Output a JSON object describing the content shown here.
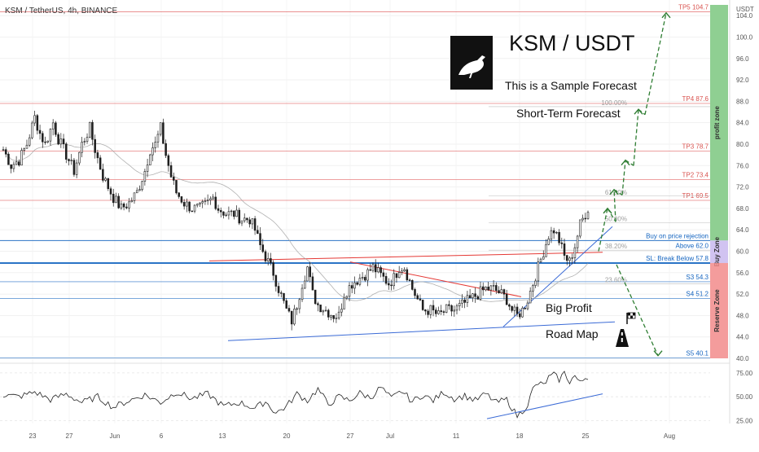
{
  "header": {
    "symbol": "KSM / TetherUS, 4h, BINANCE"
  },
  "overlay": {
    "title": "KSM / USDT",
    "line1": "This is a Sample Forecast",
    "line2": "Short-Term Forecast",
    "road1": "Big Profit",
    "road2": "Road Map"
  },
  "colors": {
    "up": "#1e1e1e",
    "down": "#1e1e1e",
    "tp": "#e57373",
    "blue": "#1565c0",
    "green_zone": "#7bc77f",
    "buy_zone": "#c9b8ef",
    "red_zone": "#f28b8b",
    "arrow": "#2e7d32",
    "trend_red": "#e53935",
    "trend_blue": "#3b6bd6"
  },
  "chart_data": [
    {
      "type": "candlestick",
      "title": "KSM / TetherUS, 4h, BINANCE",
      "y_unit": "USDT",
      "ylim": [
        40.0,
        106.0
      ],
      "x_ticks": [
        "23",
        "27",
        "Jun",
        "6",
        "13",
        "20",
        "27",
        "Jul",
        "11",
        "18",
        "25",
        "Aug"
      ],
      "y_ticks": [
        40.0,
        44.0,
        48.0,
        52.0,
        56.0,
        60.0,
        64.0,
        68.0,
        72.0,
        76.0,
        80.0,
        84.0,
        88.0,
        92.0,
        96.0,
        100.0,
        104.0
      ],
      "close_path": [
        [
          0,
          79
        ],
        [
          3,
          76
        ],
        [
          6,
          77
        ],
        [
          9,
          80
        ],
        [
          12,
          85
        ],
        [
          14,
          82
        ],
        [
          16,
          80
        ],
        [
          19,
          84
        ],
        [
          21,
          81
        ],
        [
          24,
          78
        ],
        [
          27,
          75
        ],
        [
          30,
          80
        ],
        [
          33,
          83
        ],
        [
          35,
          79
        ],
        [
          38,
          74
        ],
        [
          40,
          72
        ],
        [
          42,
          70
        ],
        [
          45,
          68
        ],
        [
          48,
          69
        ],
        [
          51,
          71
        ],
        [
          54,
          75
        ],
        [
          56,
          79
        ],
        [
          58,
          80
        ],
        [
          60,
          83
        ],
        [
          62,
          78
        ],
        [
          64,
          74
        ],
        [
          66,
          71
        ],
        [
          69,
          69
        ],
        [
          72,
          68
        ],
        [
          75,
          68
        ],
        [
          78,
          69
        ],
        [
          80,
          70
        ],
        [
          82,
          68
        ],
        [
          85,
          67
        ],
        [
          88,
          67
        ],
        [
          91,
          66
        ],
        [
          94,
          66
        ],
        [
          96,
          64
        ],
        [
          98,
          61
        ],
        [
          100,
          59
        ],
        [
          103,
          56
        ],
        [
          105,
          53
        ],
        [
          108,
          49
        ],
        [
          110,
          47
        ],
        [
          112,
          50
        ],
        [
          114,
          54
        ],
        [
          116,
          57
        ],
        [
          118,
          52
        ],
        [
          120,
          50
        ],
        [
          123,
          49
        ],
        [
          126,
          48
        ],
        [
          128,
          48
        ],
        [
          130,
          52
        ],
        [
          133,
          54
        ],
        [
          136,
          55
        ],
        [
          139,
          56
        ],
        [
          141,
          57
        ],
        [
          143,
          56
        ],
        [
          145,
          55
        ],
        [
          147,
          54
        ],
        [
          149,
          55
        ],
        [
          151,
          57
        ],
        [
          153,
          57
        ],
        [
          156,
          53
        ],
        [
          158,
          51
        ],
        [
          160,
          49
        ],
        [
          163,
          49
        ],
        [
          166,
          48
        ],
        [
          169,
          49
        ],
        [
          172,
          49
        ],
        [
          175,
          50
        ],
        [
          178,
          51
        ],
        [
          181,
          52
        ],
        [
          184,
          53
        ],
        [
          187,
          53
        ],
        [
          190,
          52
        ],
        [
          192,
          51
        ],
        [
          194,
          49
        ],
        [
          196,
          48
        ],
        [
          198,
          49
        ],
        [
          200,
          51
        ],
        [
          202,
          54
        ],
        [
          204,
          57
        ],
        [
          206,
          60
        ],
        [
          208,
          63
        ],
        [
          210,
          64
        ],
        [
          212,
          62
        ],
        [
          214,
          59
        ],
        [
          216,
          58
        ],
        [
          218,
          61
        ],
        [
          220,
          65
        ],
        [
          221,
          66
        ],
        [
          222,
          67
        ],
        [
          223,
          68
        ]
      ],
      "levels": [
        {
          "label": "TP5 104.7",
          "value": 104.7,
          "kind": "tp"
        },
        {
          "label": "TP4 87.6",
          "value": 87.6,
          "kind": "tp"
        },
        {
          "label": "TP3 78.7",
          "value": 78.7,
          "kind": "tp"
        },
        {
          "label": "TP2 73.4",
          "value": 73.4,
          "kind": "tp"
        },
        {
          "label": "TP1 69.5",
          "value": 69.5,
          "kind": "tp"
        },
        {
          "label": "Buy on price rejection",
          "value": 62.0,
          "kind": "buy"
        },
        {
          "label": "Above 62.0",
          "value": 62.0,
          "kind": "buy2"
        },
        {
          "label": "SL: Break Below 57.8",
          "value": 57.8,
          "kind": "sl"
        },
        {
          "label": "S3 54.3",
          "value": 54.3,
          "kind": "s"
        },
        {
          "label": "S4 51.2",
          "value": 51.2,
          "kind": "s"
        },
        {
          "label": "S5 40.1",
          "value": 40.1,
          "kind": "s"
        }
      ],
      "fibs": [
        {
          "label": "100.00%",
          "value": 87.0
        },
        {
          "label": "61.80%",
          "value": 70.3
        },
        {
          "label": "50.00%",
          "value": 65.3
        },
        {
          "label": "38.20%",
          "value": 60.2
        },
        {
          "label": "23.60%",
          "value": 53.9
        }
      ],
      "zones": [
        {
          "label": "profit zone",
          "from": 62.0,
          "to": 106.0
        },
        {
          "label": "Buy Zone",
          "from": 57.8,
          "to": 62.0
        },
        {
          "label": "Reserve Zone",
          "from": 40.0,
          "to": 57.8
        }
      ]
    },
    {
      "type": "line",
      "title": "",
      "ylim": [
        22.0,
        80.0
      ],
      "y_ticks": [
        25.0,
        50.0,
        75.0
      ],
      "rsi_path": [
        [
          0,
          52
        ],
        [
          6,
          50
        ],
        [
          12,
          55
        ],
        [
          18,
          47
        ],
        [
          24,
          53
        ],
        [
          30,
          44
        ],
        [
          36,
          50
        ],
        [
          42,
          39
        ],
        [
          48,
          46
        ],
        [
          54,
          52
        ],
        [
          60,
          44
        ],
        [
          66,
          55
        ],
        [
          72,
          48
        ],
        [
          78,
          53
        ],
        [
          84,
          40
        ],
        [
          90,
          44
        ],
        [
          96,
          38
        ],
        [
          100,
          45
        ],
        [
          104,
          33
        ],
        [
          108,
          40
        ],
        [
          112,
          53
        ],
        [
          116,
          46
        ],
        [
          120,
          58
        ],
        [
          124,
          42
        ],
        [
          128,
          50
        ],
        [
          132,
          46
        ],
        [
          136,
          54
        ],
        [
          140,
          49
        ],
        [
          144,
          60
        ],
        [
          148,
          48
        ],
        [
          152,
          56
        ],
        [
          156,
          45
        ],
        [
          160,
          52
        ],
        [
          164,
          46
        ],
        [
          168,
          55
        ],
        [
          172,
          48
        ],
        [
          176,
          51
        ],
        [
          180,
          46
        ],
        [
          184,
          53
        ],
        [
          188,
          44
        ],
        [
          192,
          47
        ],
        [
          196,
          30
        ],
        [
          198,
          35
        ],
        [
          200,
          42
        ],
        [
          202,
          58
        ],
        [
          204,
          64
        ],
        [
          206,
          62
        ],
        [
          208,
          70
        ],
        [
          210,
          73
        ],
        [
          212,
          68
        ],
        [
          214,
          75
        ],
        [
          216,
          66
        ],
        [
          218,
          72
        ],
        [
          220,
          64
        ],
        [
          222,
          70
        ],
        [
          223,
          71
        ]
      ]
    }
  ]
}
